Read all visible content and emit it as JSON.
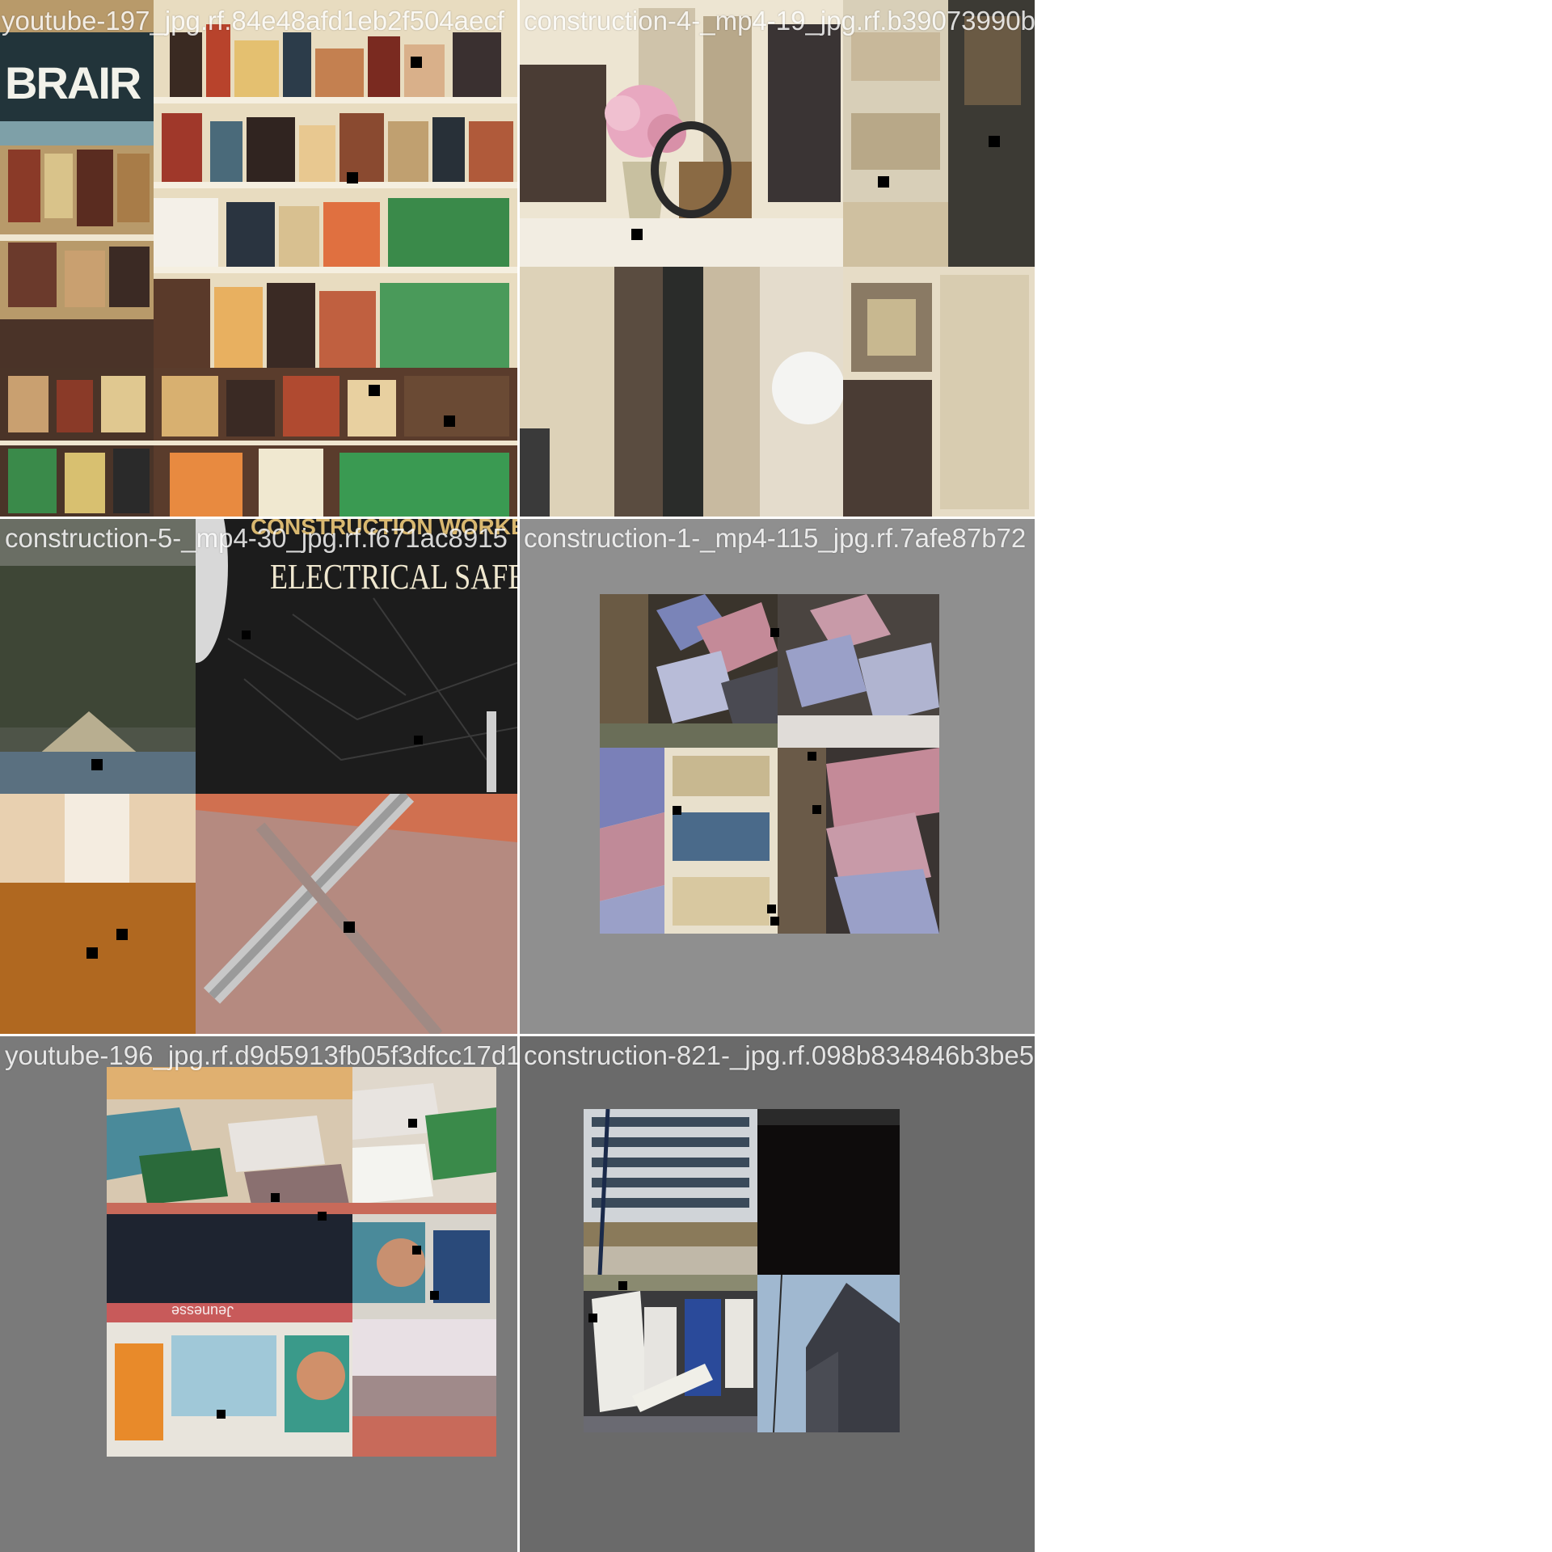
{
  "mosaic": {
    "tiles": [
      {
        "label": "youtube-197_jpg.rf.84e48afd1eb2f504aecf",
        "background": "#d8c9a8"
      },
      {
        "label": "construction-4-_mp4-19_jpg.rf.b39073990b",
        "background": "#e9e1cf"
      },
      {
        "label": "construction-5-_mp4-30_jpg.rf.f671ac8915",
        "background": "#6b6860"
      },
      {
        "label": "construction-1-_mp4-115_jpg.rf.7afe87b72",
        "background": "#8f8f8f"
      },
      {
        "label": "youtube-196_jpg.rf.d9d5913fb05f3dfcc17d1",
        "background": "#7a7a7a"
      },
      {
        "label": "construction-821-_jpg.rf.098b834846b3be5",
        "background": "#6a6a6a"
      }
    ],
    "scene_texts": {
      "store_sign": "BRAIR",
      "poster_top": "CONSTRUCTION WORKERS",
      "poster_title": "ELECTRICAL SAFETY",
      "shelf_sign": "Jeunesse"
    }
  }
}
